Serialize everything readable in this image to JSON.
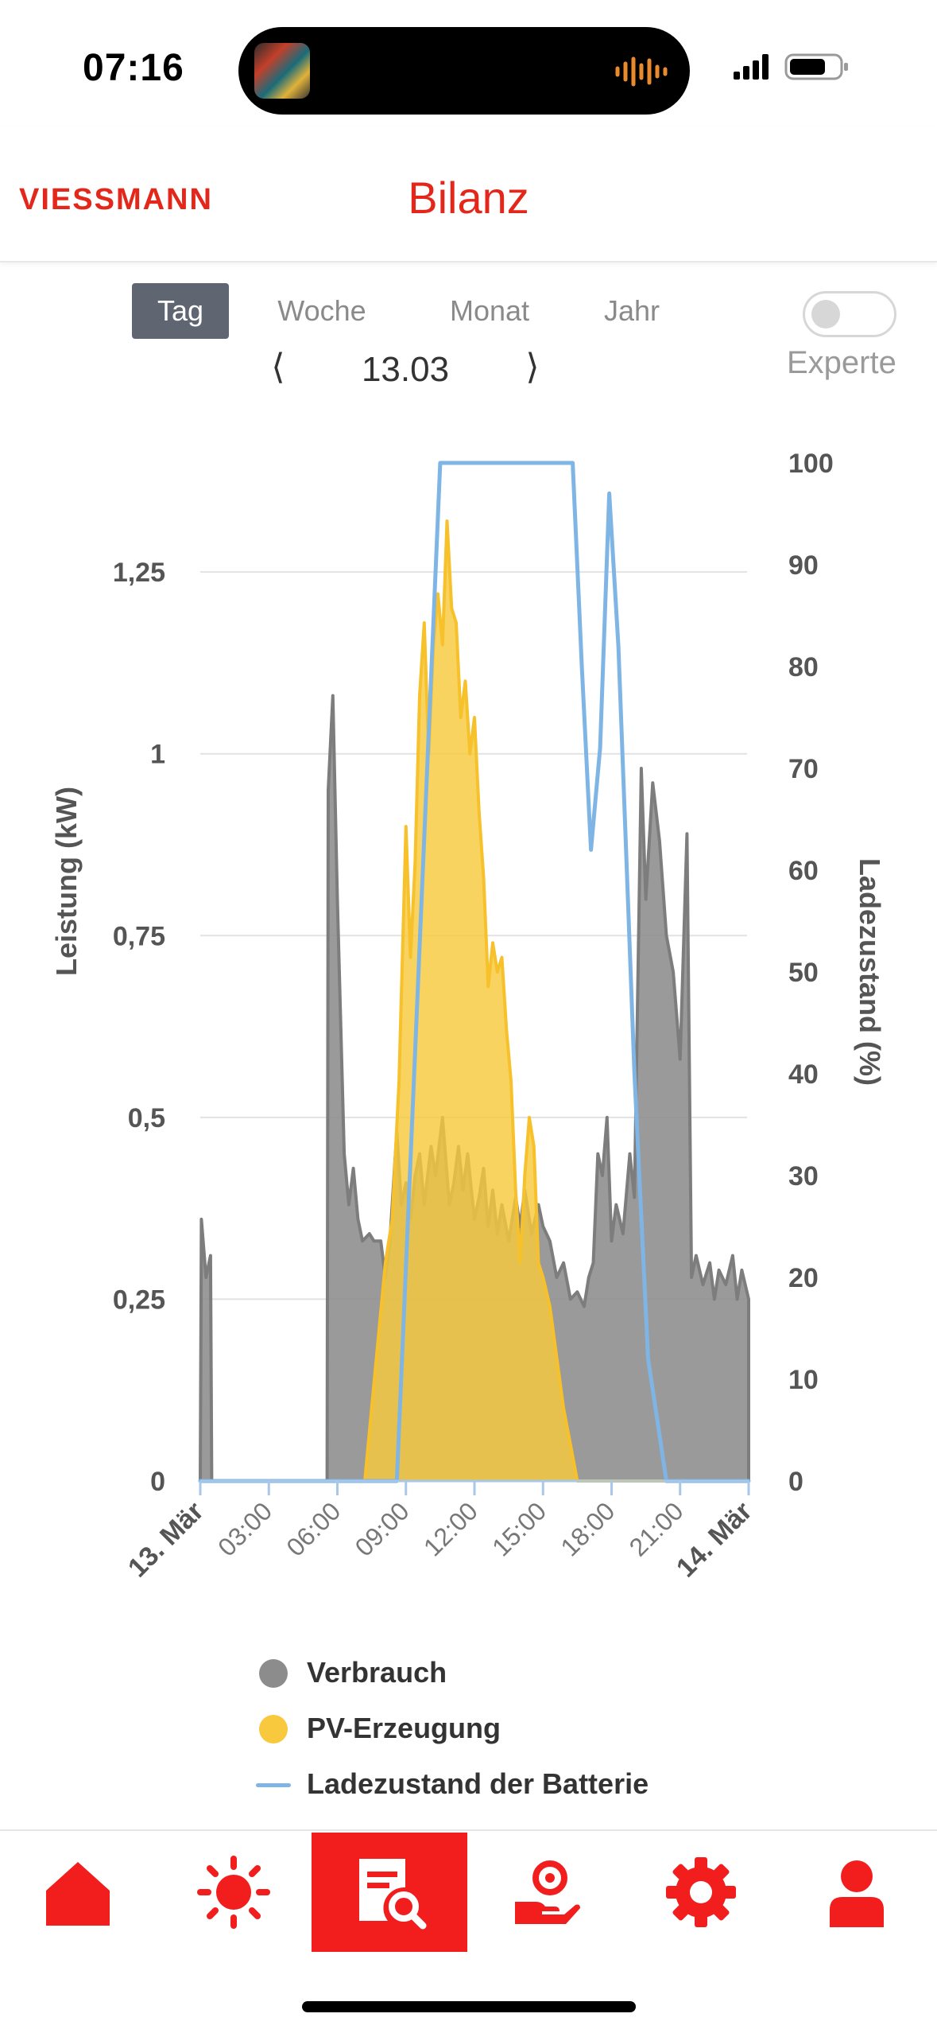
{
  "status_bar": {
    "time": "07:16"
  },
  "header": {
    "logo": "VIESSMANN",
    "title": "Bilanz"
  },
  "period_tabs": [
    {
      "label": "Tag",
      "active": true
    },
    {
      "label": "Woche",
      "active": false
    },
    {
      "label": "Monat",
      "active": false
    },
    {
      "label": "Jahr",
      "active": false
    }
  ],
  "date_nav": {
    "prev_glyph": "⟨",
    "date": "13.03",
    "next_glyph": "⟩"
  },
  "expert_toggle": {
    "label": "Experte",
    "on": false
  },
  "chart_data": {
    "type": "area",
    "left_axis": {
      "label": "Leistung (kW)",
      "ticks": [
        "0",
        "0,25",
        "0,5",
        "0,75",
        "1",
        "1,25"
      ],
      "range": [
        0,
        1.4
      ]
    },
    "right_axis": {
      "label": "Ladezustand (%)",
      "ticks": [
        "0",
        "10",
        "20",
        "30",
        "40",
        "50",
        "60",
        "70",
        "80",
        "90",
        "100"
      ],
      "range": [
        0,
        100
      ]
    },
    "x_axis": {
      "range_hours": [
        0,
        24
      ],
      "ticks": [
        {
          "h": 0,
          "label": "13. Mär",
          "bold": true
        },
        {
          "h": 3,
          "label": "03:00",
          "bold": false
        },
        {
          "h": 6,
          "label": "06:00",
          "bold": false
        },
        {
          "h": 9,
          "label": "09:00",
          "bold": false
        },
        {
          "h": 12,
          "label": "12:00",
          "bold": false
        },
        {
          "h": 15,
          "label": "15:00",
          "bold": false
        },
        {
          "h": 18,
          "label": "18:00",
          "bold": false
        },
        {
          "h": 21,
          "label": "21:00",
          "bold": false
        },
        {
          "h": 24,
          "label": "14. Mär",
          "bold": true
        }
      ]
    },
    "grid": true,
    "series": [
      {
        "name": "Verbrauch",
        "color": "#8c8c8c",
        "kind": "area",
        "axis": "left",
        "points": [
          [
            0.0,
            0.0
          ],
          [
            0.05,
            0.36
          ],
          [
            0.25,
            0.28
          ],
          [
            0.45,
            0.31
          ],
          [
            0.5,
            0.0
          ],
          [
            5.55,
            0.0
          ],
          [
            5.6,
            0.95
          ],
          [
            5.8,
            1.08
          ],
          [
            6.0,
            0.8
          ],
          [
            6.3,
            0.45
          ],
          [
            6.5,
            0.38
          ],
          [
            6.7,
            0.43
          ],
          [
            6.9,
            0.36
          ],
          [
            7.1,
            0.33
          ],
          [
            7.4,
            0.34
          ],
          [
            7.6,
            0.33
          ],
          [
            7.9,
            0.33
          ],
          [
            8.1,
            0.28
          ],
          [
            8.3,
            0.33
          ],
          [
            8.6,
            0.48
          ],
          [
            8.8,
            0.38
          ],
          [
            9.0,
            0.41
          ],
          [
            9.2,
            0.36
          ],
          [
            9.4,
            0.42
          ],
          [
            9.6,
            0.45
          ],
          [
            9.8,
            0.38
          ],
          [
            10.1,
            0.46
          ],
          [
            10.3,
            0.42
          ],
          [
            10.6,
            0.5
          ],
          [
            10.9,
            0.38
          ],
          [
            11.1,
            0.41
          ],
          [
            11.3,
            0.46
          ],
          [
            11.5,
            0.4
          ],
          [
            11.7,
            0.45
          ],
          [
            12.0,
            0.36
          ],
          [
            12.2,
            0.39
          ],
          [
            12.4,
            0.43
          ],
          [
            12.6,
            0.35
          ],
          [
            12.8,
            0.4
          ],
          [
            13.0,
            0.34
          ],
          [
            13.2,
            0.38
          ],
          [
            13.5,
            0.33
          ],
          [
            13.8,
            0.39
          ],
          [
            14.0,
            0.35
          ],
          [
            14.2,
            0.4
          ],
          [
            14.5,
            0.34
          ],
          [
            14.8,
            0.38
          ],
          [
            15.0,
            0.35
          ],
          [
            15.3,
            0.33
          ],
          [
            15.6,
            0.28
          ],
          [
            15.9,
            0.3
          ],
          [
            16.2,
            0.25
          ],
          [
            16.5,
            0.26
          ],
          [
            16.8,
            0.24
          ],
          [
            17.0,
            0.28
          ],
          [
            17.2,
            0.3
          ],
          [
            17.4,
            0.45
          ],
          [
            17.6,
            0.42
          ],
          [
            17.8,
            0.5
          ],
          [
            18.0,
            0.33
          ],
          [
            18.2,
            0.38
          ],
          [
            18.5,
            0.34
          ],
          [
            18.8,
            0.45
          ],
          [
            19.0,
            0.39
          ],
          [
            19.3,
            0.98
          ],
          [
            19.5,
            0.8
          ],
          [
            19.8,
            0.96
          ],
          [
            20.1,
            0.88
          ],
          [
            20.4,
            0.75
          ],
          [
            20.7,
            0.7
          ],
          [
            21.0,
            0.58
          ],
          [
            21.3,
            0.89
          ],
          [
            21.5,
            0.28
          ],
          [
            21.7,
            0.31
          ],
          [
            22.0,
            0.27
          ],
          [
            22.3,
            0.3
          ],
          [
            22.5,
            0.25
          ],
          [
            22.7,
            0.29
          ],
          [
            23.0,
            0.27
          ],
          [
            23.3,
            0.31
          ],
          [
            23.5,
            0.25
          ],
          [
            23.7,
            0.29
          ],
          [
            24.0,
            0.25
          ],
          [
            24.0,
            0.0
          ]
        ]
      },
      {
        "name": "PV-Erzeugung",
        "color": "#f8c93c",
        "kind": "area",
        "axis": "left",
        "points": [
          [
            0.0,
            0.0
          ],
          [
            7.2,
            0.0
          ],
          [
            7.5,
            0.1
          ],
          [
            7.8,
            0.2
          ],
          [
            8.1,
            0.3
          ],
          [
            8.4,
            0.36
          ],
          [
            8.7,
            0.55
          ],
          [
            9.0,
            0.9
          ],
          [
            9.2,
            0.72
          ],
          [
            9.4,
            0.85
          ],
          [
            9.6,
            1.08
          ],
          [
            9.8,
            1.18
          ],
          [
            10.0,
            1.0
          ],
          [
            10.2,
            1.15
          ],
          [
            10.4,
            1.22
          ],
          [
            10.6,
            1.15
          ],
          [
            10.8,
            1.32
          ],
          [
            11.0,
            1.2
          ],
          [
            11.2,
            1.18
          ],
          [
            11.4,
            1.05
          ],
          [
            11.6,
            1.1
          ],
          [
            11.8,
            1.0
          ],
          [
            12.0,
            1.05
          ],
          [
            12.2,
            0.92
          ],
          [
            12.4,
            0.83
          ],
          [
            12.6,
            0.68
          ],
          [
            12.8,
            0.74
          ],
          [
            13.0,
            0.7
          ],
          [
            13.2,
            0.72
          ],
          [
            13.4,
            0.62
          ],
          [
            13.6,
            0.55
          ],
          [
            13.8,
            0.4
          ],
          [
            14.0,
            0.3
          ],
          [
            14.2,
            0.42
          ],
          [
            14.4,
            0.5
          ],
          [
            14.6,
            0.46
          ],
          [
            14.8,
            0.3
          ],
          [
            15.0,
            0.28
          ],
          [
            15.3,
            0.24
          ],
          [
            15.6,
            0.17
          ],
          [
            15.9,
            0.1
          ],
          [
            16.2,
            0.05
          ],
          [
            16.5,
            0.0
          ],
          [
            24.0,
            0.0
          ]
        ]
      },
      {
        "name": "Ladezustand der Batterie",
        "color": "#7fb5e4",
        "kind": "line",
        "axis": "right",
        "points": [
          [
            0.0,
            0.0
          ],
          [
            8.6,
            0.0
          ],
          [
            10.5,
            100
          ],
          [
            16.3,
            100
          ],
          [
            16.7,
            80
          ],
          [
            17.1,
            62
          ],
          [
            17.5,
            72
          ],
          [
            17.9,
            97
          ],
          [
            18.3,
            82
          ],
          [
            18.6,
            64
          ],
          [
            19.0,
            40
          ],
          [
            19.6,
            12
          ],
          [
            20.4,
            0.0
          ],
          [
            24.0,
            0.0
          ]
        ]
      }
    ]
  },
  "legend": [
    {
      "label": "Verbrauch",
      "color": "#8c8c8c",
      "shape": "dot"
    },
    {
      "label": "PV-Erzeugung",
      "color": "#f8c93c",
      "shape": "dot"
    },
    {
      "label": "Ladezustand der Batterie",
      "color": "#7fb5e4",
      "shape": "line"
    }
  ],
  "bottom_nav": [
    {
      "id": "home",
      "icon": "house-icon",
      "active": false
    },
    {
      "id": "pv",
      "icon": "sun-icon",
      "active": false
    },
    {
      "id": "bilanz",
      "icon": "report-magnifier-icon",
      "active": true
    },
    {
      "id": "tariff",
      "icon": "hand-energy-icon",
      "active": false
    },
    {
      "id": "settings",
      "icon": "gear-icon",
      "active": false
    },
    {
      "id": "profile",
      "icon": "user-icon",
      "active": false
    }
  ],
  "colors": {
    "brand_red": "#e3271b",
    "nav_active": "#f21d1d",
    "tab_active": "#5f6571"
  }
}
